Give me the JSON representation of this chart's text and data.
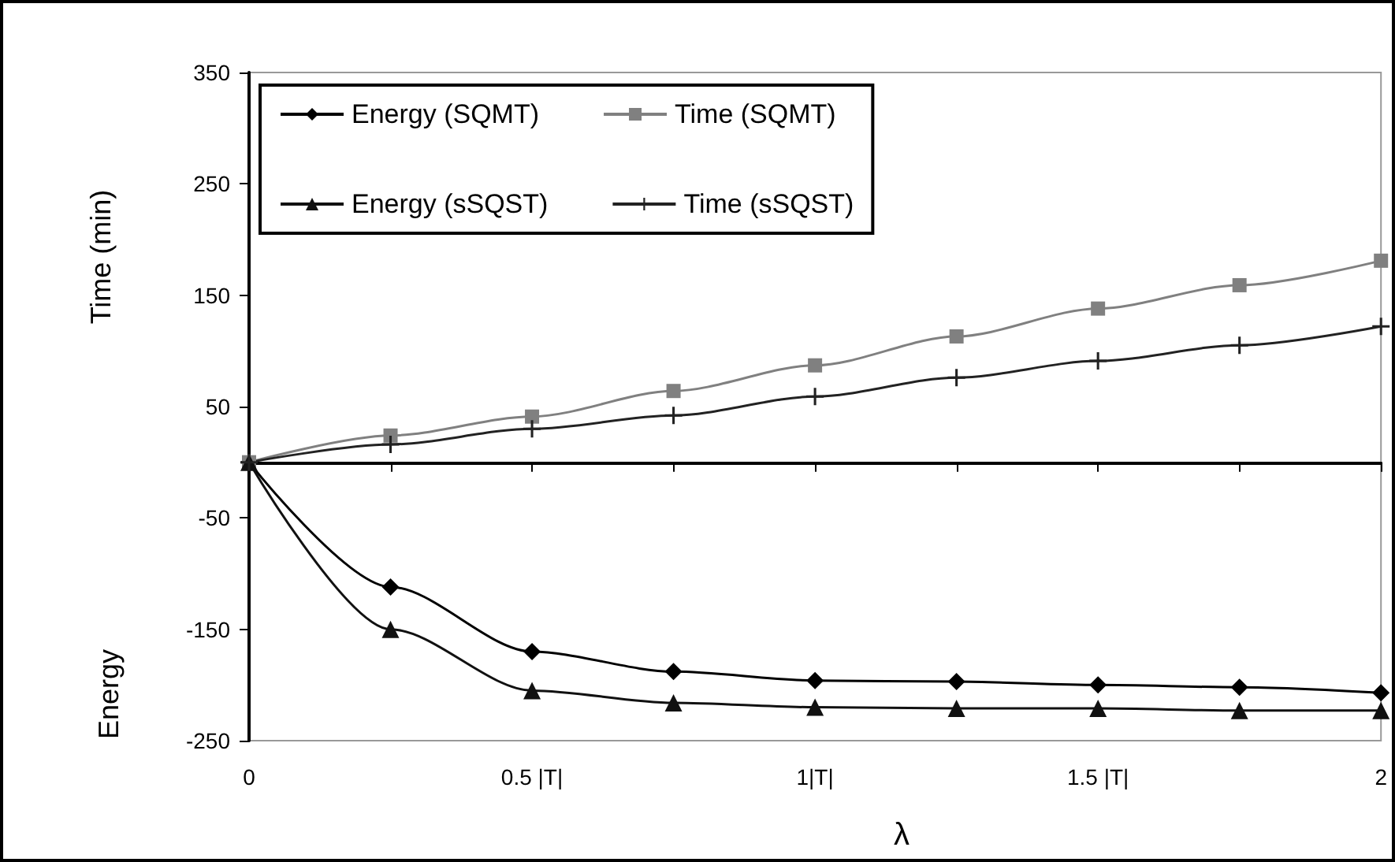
{
  "chart_data": {
    "type": "line",
    "xlabel": "λ",
    "ylabel": "Time (min)",
    "annotations": [
      "Energy"
    ],
    "x": [
      0,
      0.25,
      0.5,
      0.75,
      1,
      1.25,
      1.5,
      1.75,
      2
    ],
    "xlim": [
      0,
      2
    ],
    "xticks": [
      0,
      {
        "value": 0.25,
        "label": null
      },
      {
        "value": 0.5,
        "label": "0.5 |T|"
      },
      {
        "value": 0.75,
        "label": null
      },
      {
        "value": 1,
        "label": "1|T|"
      },
      {
        "value": 1.25,
        "label": null
      },
      {
        "value": 1.5,
        "label": "1.5 |T|"
      },
      {
        "value": 1.75,
        "label": null
      },
      2
    ],
    "ylim": [
      -250,
      350
    ],
    "yticks": [
      -250,
      -150,
      -50,
      50,
      150,
      250,
      350
    ],
    "grid": false,
    "legend": "top left",
    "series": [
      {
        "name": "Energy (SQMT)",
        "color": "#000000",
        "marker": "diamond",
        "values": [
          0,
          -112,
          -170,
          -188,
          -196,
          -197,
          -200,
          -202,
          -207
        ]
      },
      {
        "name": "Time (SQMT)",
        "color": "#808080",
        "marker": "square",
        "values": [
          0,
          24,
          41,
          64,
          87,
          113,
          138,
          159,
          181
        ]
      },
      {
        "name": "Energy (sSQST)",
        "color": "#111111",
        "marker": "triangle",
        "values": [
          0,
          -150,
          -205,
          -216,
          -220,
          -221,
          -221,
          -223,
          -223
        ]
      },
      {
        "name": "Time (sSQST)",
        "color": "#222222",
        "marker": "cross",
        "values": [
          0,
          16,
          30,
          42,
          59,
          76,
          91,
          105,
          122
        ]
      }
    ]
  }
}
